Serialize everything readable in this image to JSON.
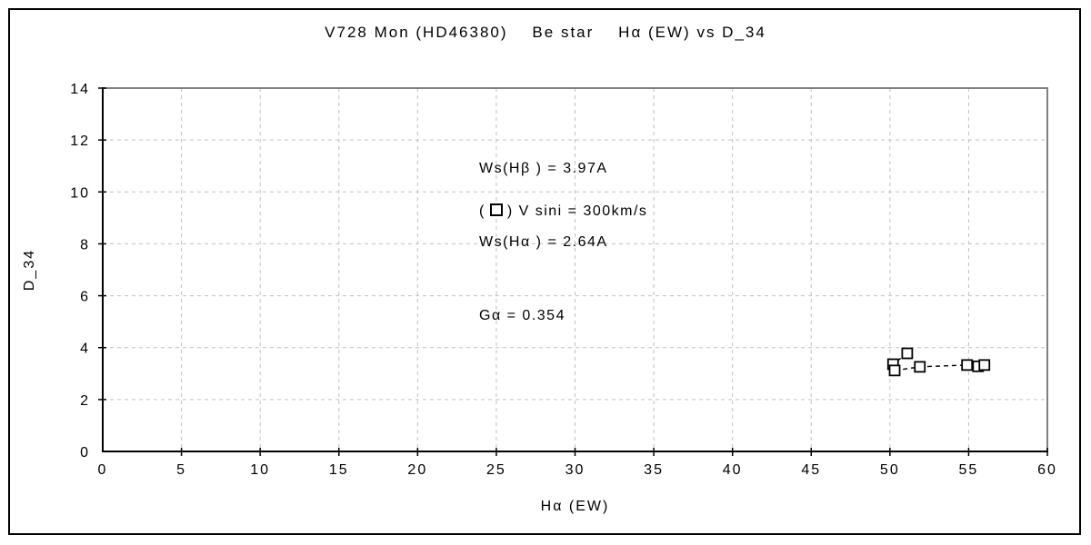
{
  "chart_data": {
    "type": "scatter",
    "title": "V728 Mon (HD46380)    Be star    Hα (EW) vs D_34",
    "xlabel": "Hα (EW)",
    "ylabel": "D_34",
    "xlim": [
      0,
      60
    ],
    "ylim": [
      0,
      14
    ],
    "x_ticks": [
      0,
      5,
      10,
      15,
      20,
      25,
      30,
      35,
      40,
      45,
      50,
      55,
      60
    ],
    "y_ticks": [
      0,
      2,
      4,
      6,
      8,
      10,
      12,
      14
    ],
    "grid": true,
    "grid_style": "dashed",
    "series": [
      {
        "name": "V sini = 300km/s",
        "marker": "open-square",
        "line": "dashed",
        "points": [
          [
            51.1,
            3.78
          ],
          [
            50.2,
            3.36
          ],
          [
            50.3,
            3.12
          ],
          [
            51.9,
            3.26
          ],
          [
            54.9,
            3.33
          ],
          [
            55.6,
            3.28
          ],
          [
            56.0,
            3.33
          ]
        ]
      }
    ],
    "annotations": [
      "Ws(Hβ ) = 3.97A",
      "Ws(Hα ) = 2.64A",
      "Gα = 0.354"
    ],
    "legend": {
      "prefix": "(",
      "suffix": ") V sini = 300km/s",
      "marker": "open-square"
    }
  },
  "colors": {
    "background": "#ffffff",
    "outer_border": "#000000",
    "axis": "#000000",
    "frame_gray": "#808080",
    "grid": "#c0c0c0",
    "marker_stroke": "#000000",
    "marker_fill": "#ffffff",
    "text": "#000000"
  }
}
